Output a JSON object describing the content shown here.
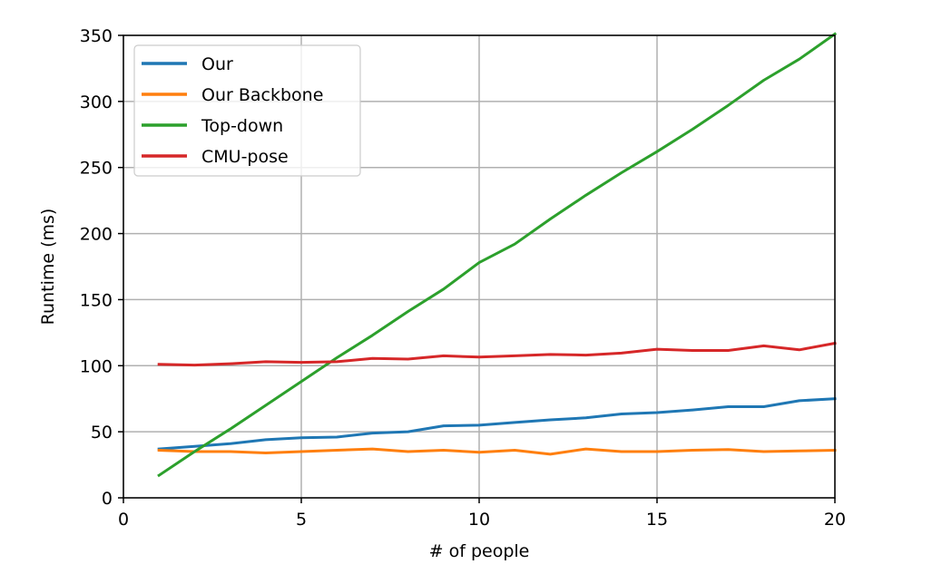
{
  "chart_data": {
    "type": "line",
    "title": "",
    "xlabel": "# of people",
    "ylabel": "Runtime (ms)",
    "xlim": [
      0,
      20
    ],
    "ylim": [
      0,
      350
    ],
    "xticks": [
      0,
      5,
      10,
      15,
      20
    ],
    "yticks": [
      0,
      50,
      100,
      150,
      200,
      250,
      300,
      350
    ],
    "grid": true,
    "legend_position": "top-left",
    "x": [
      1,
      2,
      3,
      4,
      5,
      6,
      7,
      8,
      9,
      10,
      11,
      12,
      13,
      14,
      15,
      16,
      17,
      18,
      19,
      20
    ],
    "series": [
      {
        "name": "Our",
        "color": "#1f77b4",
        "values": [
          37,
          39,
          41,
          44,
          45.5,
          46,
          49,
          50,
          54.5,
          55,
          57,
          59,
          60.5,
          63.5,
          64.5,
          66.5,
          69,
          69,
          73.5,
          75
        ]
      },
      {
        "name": "Our Backbone",
        "color": "#ff7f0e",
        "values": [
          36,
          35,
          35,
          34,
          35,
          36,
          37,
          35,
          36,
          34.5,
          36,
          33,
          37,
          35,
          35,
          36,
          36.5,
          35,
          35.5,
          36
        ]
      },
      {
        "name": "Top-down",
        "color": "#2ca02c",
        "values": [
          17,
          35,
          52,
          70,
          88,
          106,
          123,
          141,
          158,
          178,
          192,
          211,
          229,
          246,
          262,
          279,
          297,
          316,
          332,
          351
        ]
      },
      {
        "name": "CMU-pose",
        "color": "#d62728",
        "values": [
          101,
          100.5,
          101.5,
          103,
          102.5,
          103,
          105.5,
          105,
          107.5,
          106.5,
          107.5,
          108.5,
          108,
          109.5,
          112.5,
          111.5,
          111.5,
          115,
          112,
          117
        ]
      }
    ]
  }
}
